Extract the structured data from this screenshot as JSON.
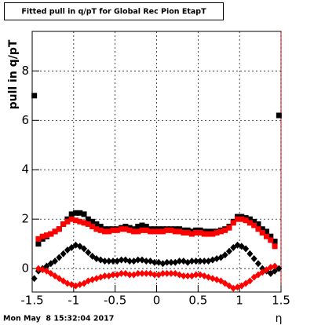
{
  "title_box": "Fitted pull in q/pT for Global Rec Pion EtapT",
  "footer": "Mon May  8 15:32:04 2017",
  "chart_data": {
    "type": "scatter",
    "ylabel": "pull in q/pT",
    "xlabel": "η",
    "xlim": [
      -1.5,
      1.5
    ],
    "ylim": [
      -0.95,
      9.6
    ],
    "xticks": [
      -1.5,
      -1,
      -0.5,
      0,
      0.5,
      1,
      1.5
    ],
    "yticks": [
      0,
      2,
      4,
      6,
      8
    ],
    "grid": true,
    "x": [
      -1.475,
      -1.425,
      -1.375,
      -1.325,
      -1.275,
      -1.225,
      -1.175,
      -1.125,
      -1.075,
      -1.025,
      -0.975,
      -0.925,
      -0.875,
      -0.825,
      -0.775,
      -0.725,
      -0.675,
      -0.625,
      -0.575,
      -0.525,
      -0.475,
      -0.425,
      -0.375,
      -0.325,
      -0.275,
      -0.225,
      -0.175,
      -0.125,
      -0.075,
      -0.025,
      0.025,
      0.075,
      0.125,
      0.175,
      0.225,
      0.275,
      0.325,
      0.375,
      0.425,
      0.475,
      0.525,
      0.575,
      0.625,
      0.675,
      0.725,
      0.775,
      0.825,
      0.875,
      0.925,
      0.975,
      1.025,
      1.075,
      1.125,
      1.175,
      1.225,
      1.275,
      1.325,
      1.375,
      1.425,
      1.475
    ],
    "series": [
      {
        "color": "#000000",
        "marker": "square",
        "values": [
          7.0,
          1.0,
          1.2,
          1.3,
          1.4,
          1.5,
          1.6,
          1.8,
          2.0,
          2.2,
          2.25,
          2.25,
          2.2,
          2.0,
          1.9,
          1.8,
          1.7,
          1.6,
          1.6,
          1.6,
          1.6,
          1.65,
          1.7,
          1.65,
          1.6,
          1.7,
          1.75,
          1.7,
          1.6,
          1.6,
          1.6,
          1.6,
          1.6,
          1.6,
          1.6,
          1.6,
          1.55,
          1.55,
          1.5,
          1.55,
          1.55,
          1.5,
          1.5,
          1.5,
          1.5,
          1.55,
          1.6,
          1.7,
          1.9,
          2.1,
          2.1,
          2.05,
          2.0,
          1.9,
          1.8,
          1.6,
          1.5,
          1.3,
          1.1,
          6.2
        ]
      },
      {
        "color": "#ff0000",
        "marker": "square",
        "values": [
          null,
          1.2,
          1.3,
          1.35,
          1.4,
          1.5,
          1.6,
          1.8,
          1.9,
          2.0,
          1.95,
          1.9,
          1.85,
          1.8,
          1.7,
          1.6,
          1.55,
          1.5,
          1.5,
          1.55,
          1.55,
          1.6,
          1.6,
          1.55,
          1.5,
          1.5,
          1.55,
          1.55,
          1.5,
          1.5,
          1.5,
          1.5,
          1.55,
          1.55,
          1.5,
          1.5,
          1.45,
          1.45,
          1.4,
          1.45,
          1.45,
          1.4,
          1.4,
          1.4,
          1.45,
          1.5,
          1.55,
          1.65,
          1.85,
          2.0,
          2.0,
          1.95,
          1.85,
          1.75,
          1.6,
          1.45,
          1.3,
          1.15,
          0.9,
          null
        ]
      },
      {
        "color": "#000000",
        "marker": "diamond",
        "values": [
          -0.4,
          -0.1,
          0.0,
          0.1,
          0.2,
          0.3,
          0.45,
          0.6,
          0.75,
          0.85,
          0.95,
          0.9,
          0.8,
          0.65,
          0.5,
          0.4,
          0.35,
          0.3,
          0.3,
          0.3,
          0.3,
          0.35,
          0.35,
          0.3,
          0.3,
          0.35,
          0.35,
          0.3,
          0.3,
          0.25,
          0.25,
          0.2,
          0.25,
          0.25,
          0.25,
          0.3,
          0.3,
          0.25,
          0.3,
          0.3,
          0.3,
          0.3,
          0.3,
          0.35,
          0.4,
          0.45,
          0.55,
          0.7,
          0.85,
          0.95,
          0.9,
          0.8,
          0.6,
          0.4,
          0.2,
          0.0,
          -0.1,
          -0.2,
          -0.1,
          0.0
        ]
      },
      {
        "color": "#ff0000",
        "marker": "diamond",
        "values": [
          null,
          0.0,
          -0.05,
          -0.1,
          -0.2,
          -0.3,
          -0.4,
          -0.5,
          -0.6,
          -0.65,
          -0.7,
          -0.65,
          -0.6,
          -0.5,
          -0.45,
          -0.4,
          -0.35,
          -0.3,
          -0.3,
          -0.25,
          -0.25,
          -0.2,
          -0.2,
          -0.25,
          -0.25,
          -0.2,
          -0.2,
          -0.2,
          -0.2,
          -0.25,
          -0.25,
          -0.2,
          -0.2,
          -0.2,
          -0.2,
          -0.25,
          -0.3,
          -0.3,
          -0.3,
          -0.25,
          -0.25,
          -0.3,
          -0.35,
          -0.4,
          -0.45,
          -0.5,
          -0.6,
          -0.7,
          -0.8,
          -0.75,
          -0.7,
          -0.6,
          -0.5,
          -0.35,
          -0.25,
          -0.15,
          -0.05,
          0.05,
          0.1,
          null
        ]
      }
    ]
  }
}
